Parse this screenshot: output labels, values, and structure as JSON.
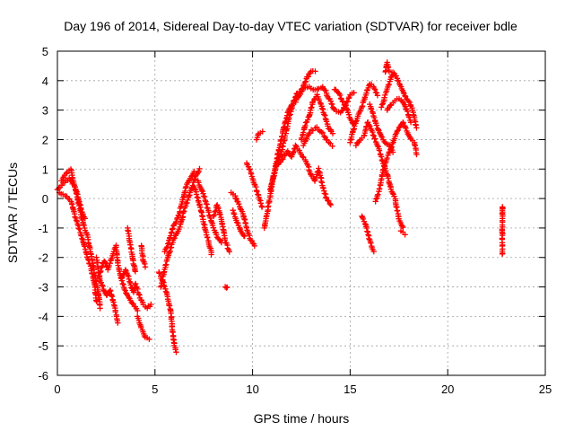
{
  "chart_data": {
    "type": "scatter",
    "title": "Day 196 of 2014, Sidereal Day-to-day VTEC variation (SDTVAR) for receiver bdle",
    "xlabel": "GPS time / hours",
    "ylabel": "SDTVAR / TECUs",
    "xlim": [
      0,
      25
    ],
    "ylim": [
      -6,
      5
    ],
    "xticks": [
      0,
      5,
      10,
      15,
      20,
      25
    ],
    "yticks": [
      -6,
      -5,
      -4,
      -3,
      -2,
      -1,
      0,
      1,
      2,
      3,
      4,
      5
    ],
    "grid": true,
    "marker": "plus",
    "color": "#ff0000",
    "series": [
      {
        "tracks": [
          [
            [
              0.0,
              0.3
            ],
            [
              0.3,
              0.5
            ],
            [
              0.6,
              0.7
            ],
            [
              0.9,
              0.4
            ],
            [
              1.1,
              -0.2
            ],
            [
              1.3,
              -0.8
            ],
            [
              1.5,
              -1.2
            ],
            [
              1.7,
              -1.8
            ],
            [
              1.9,
              -2.5
            ],
            [
              2.1,
              -3.2
            ],
            [
              2.2,
              -3.7
            ]
          ],
          [
            [
              0.1,
              0.2
            ],
            [
              0.4,
              0.1
            ],
            [
              0.7,
              -0.1
            ],
            [
              0.9,
              -0.6
            ],
            [
              1.1,
              -1.0
            ],
            [
              1.3,
              -1.4
            ],
            [
              1.5,
              -1.9
            ],
            [
              1.7,
              -2.3
            ],
            [
              1.9,
              -2.9
            ],
            [
              2.0,
              -3.5
            ]
          ],
          [
            [
              0.2,
              0.6
            ],
            [
              0.5,
              0.9
            ],
            [
              0.7,
              1.0
            ],
            [
              0.8,
              0.6
            ],
            [
              1.0,
              0.2
            ],
            [
              1.2,
              -0.3
            ],
            [
              1.4,
              -0.7
            ]
          ],
          [
            [
              2.2,
              -2.5
            ],
            [
              2.4,
              -2.1
            ],
            [
              2.6,
              -2.4
            ],
            [
              2.8,
              -2.0
            ],
            [
              3.0,
              -1.6
            ],
            [
              3.1,
              -2.2
            ],
            [
              3.3,
              -2.8
            ],
            [
              3.5,
              -3.2
            ],
            [
              3.7,
              -3.4
            ],
            [
              3.9,
              -3.6
            ],
            [
              4.1,
              -3.8
            ]
          ],
          [
            [
              2.0,
              -2.0
            ],
            [
              2.2,
              -2.8
            ],
            [
              2.5,
              -3.3
            ],
            [
              2.7,
              -3.1
            ],
            [
              2.9,
              -3.6
            ],
            [
              3.1,
              -4.2
            ]
          ],
          [
            [
              3.3,
              -2.7
            ],
            [
              3.5,
              -2.4
            ],
            [
              3.7,
              -2.8
            ],
            [
              3.9,
              -3.2
            ],
            [
              4.0,
              -2.9
            ],
            [
              4.2,
              -3.3
            ],
            [
              4.4,
              -3.6
            ],
            [
              4.6,
              -3.7
            ],
            [
              4.8,
              -3.6
            ]
          ],
          [
            [
              3.6,
              -1.0
            ],
            [
              3.7,
              -1.4
            ],
            [
              3.8,
              -1.8
            ],
            [
              3.9,
              -2.2
            ],
            [
              4.0,
              -2.5
            ]
          ],
          [
            [
              4.3,
              -1.6
            ],
            [
              4.4,
              -2.1
            ],
            [
              4.5,
              -2.3
            ]
          ],
          [
            [
              4.1,
              -4.0
            ],
            [
              4.3,
              -4.4
            ],
            [
              4.5,
              -4.7
            ],
            [
              4.7,
              -4.8
            ]
          ],
          [
            [
              5.2,
              -2.5
            ],
            [
              5.4,
              -2.8
            ],
            [
              5.6,
              -3.2
            ],
            [
              5.8,
              -3.8
            ],
            [
              5.9,
              -4.5
            ],
            [
              6.0,
              -5.0
            ],
            [
              6.1,
              -5.2
            ]
          ],
          [
            [
              5.3,
              -3.0
            ],
            [
              5.5,
              -2.4
            ],
            [
              5.7,
              -1.9
            ],
            [
              5.9,
              -1.5
            ],
            [
              6.1,
              -1.2
            ],
            [
              6.3,
              -0.9
            ],
            [
              6.5,
              -0.4
            ],
            [
              6.7,
              0.0
            ],
            [
              6.9,
              0.4
            ],
            [
              7.1,
              0.8
            ],
            [
              7.3,
              1.0
            ]
          ],
          [
            [
              5.5,
              -1.8
            ],
            [
              5.7,
              -1.5
            ],
            [
              5.9,
              -1.0
            ],
            [
              6.2,
              -0.6
            ],
            [
              6.4,
              -0.1
            ],
            [
              6.6,
              0.4
            ],
            [
              6.8,
              0.7
            ],
            [
              7.0,
              0.9
            ]
          ],
          [
            [
              7.2,
              0.6
            ],
            [
              7.4,
              0.3
            ],
            [
              7.6,
              -0.1
            ],
            [
              7.8,
              -0.6
            ],
            [
              8.0,
              -1.0
            ],
            [
              8.2,
              -1.3
            ],
            [
              8.4,
              -1.5
            ]
          ],
          [
            [
              7.0,
              0.4
            ],
            [
              7.2,
              0.0
            ],
            [
              7.4,
              -0.5
            ],
            [
              7.6,
              -1.1
            ],
            [
              7.8,
              -1.6
            ],
            [
              7.9,
              -1.9
            ]
          ],
          [
            [
              8.0,
              -0.6
            ],
            [
              8.2,
              -0.2
            ],
            [
              8.4,
              -0.7
            ],
            [
              8.6,
              -1.4
            ],
            [
              8.8,
              -1.8
            ]
          ],
          [
            [
              8.6,
              -3.0
            ],
            [
              8.7,
              -3.0
            ]
          ],
          [
            [
              8.9,
              0.2
            ],
            [
              9.1,
              0.1
            ],
            [
              9.3,
              -0.2
            ],
            [
              9.5,
              -0.5
            ],
            [
              9.7,
              -1.0
            ],
            [
              9.9,
              -1.4
            ],
            [
              10.1,
              -1.6
            ]
          ],
          [
            [
              9.0,
              -0.4
            ],
            [
              9.2,
              -0.8
            ],
            [
              9.4,
              -1.1
            ],
            [
              9.6,
              -1.3
            ]
          ],
          [
            [
              9.7,
              1.2
            ],
            [
              9.9,
              0.9
            ],
            [
              10.1,
              0.5
            ],
            [
              10.3,
              0.1
            ],
            [
              10.5,
              -0.3
            ]
          ],
          [
            [
              10.2,
              2.0
            ],
            [
              10.3,
              2.2
            ],
            [
              10.5,
              2.3
            ]
          ],
          [
            [
              10.6,
              -1.0
            ],
            [
              10.8,
              -0.3
            ],
            [
              11.0,
              0.5
            ],
            [
              11.2,
              1.2
            ],
            [
              11.4,
              1.8
            ],
            [
              11.6,
              2.4
            ],
            [
              11.8,
              2.9
            ],
            [
              12.0,
              3.2
            ],
            [
              12.2,
              3.3
            ],
            [
              12.4,
              3.5
            ],
            [
              12.6,
              3.8
            ],
            [
              12.8,
              4.1
            ],
            [
              13.0,
              4.3
            ],
            [
              13.2,
              4.3
            ]
          ],
          [
            [
              10.9,
              0.3
            ],
            [
              11.1,
              0.8
            ],
            [
              11.3,
              1.3
            ],
            [
              11.5,
              1.6
            ],
            [
              11.7,
              2.2
            ],
            [
              11.9,
              2.8
            ],
            [
              12.1,
              3.3
            ],
            [
              12.3,
              3.6
            ],
            [
              12.5,
              3.7
            ],
            [
              12.8,
              3.8
            ],
            [
              13.1,
              3.7
            ],
            [
              13.4,
              3.7
            ],
            [
              13.6,
              3.8
            ],
            [
              13.8,
              3.6
            ]
          ],
          [
            [
              11.2,
              1.1
            ],
            [
              11.5,
              1.3
            ],
            [
              11.8,
              1.6
            ],
            [
              12.0,
              1.4
            ],
            [
              12.2,
              1.8
            ],
            [
              12.5,
              1.5
            ],
            [
              12.8,
              1.2
            ],
            [
              13.0,
              0.8
            ],
            [
              13.2,
              0.6
            ],
            [
              13.4,
              1.0
            ],
            [
              13.6,
              0.4
            ],
            [
              13.8,
              0.0
            ],
            [
              14.0,
              -0.2
            ]
          ],
          [
            [
              12.5,
              2.0
            ],
            [
              12.7,
              2.5
            ],
            [
              12.9,
              2.8
            ],
            [
              13.1,
              3.3
            ],
            [
              13.3,
              3.5
            ],
            [
              13.5,
              3.2
            ],
            [
              13.7,
              2.8
            ],
            [
              13.9,
              2.4
            ],
            [
              14.1,
              2.2
            ]
          ],
          [
            [
              12.6,
              1.8
            ],
            [
              12.8,
              2.1
            ],
            [
              13.0,
              2.3
            ],
            [
              13.3,
              2.4
            ],
            [
              13.6,
              2.2
            ],
            [
              13.9,
              1.9
            ],
            [
              14.1,
              1.8
            ]
          ],
          [
            [
              13.8,
              3.5
            ],
            [
              14.0,
              3.3
            ],
            [
              14.2,
              3.0
            ],
            [
              14.5,
              2.9
            ],
            [
              14.8,
              3.2
            ],
            [
              15.0,
              3.5
            ],
            [
              15.2,
              3.6
            ]
          ],
          [
            [
              14.2,
              3.7
            ],
            [
              14.4,
              3.6
            ],
            [
              14.6,
              3.3
            ],
            [
              14.8,
              3.1
            ],
            [
              15.0,
              2.7
            ],
            [
              15.2,
              2.5
            ]
          ],
          [
            [
              15.0,
              1.9
            ],
            [
              15.2,
              2.4
            ],
            [
              15.4,
              2.8
            ],
            [
              15.6,
              3.1
            ],
            [
              15.8,
              3.5
            ],
            [
              16.0,
              3.9
            ],
            [
              16.2,
              3.8
            ],
            [
              16.4,
              3.5
            ]
          ],
          [
            [
              15.3,
              1.8
            ],
            [
              15.5,
              2.0
            ],
            [
              15.7,
              2.1
            ],
            [
              15.9,
              2.6
            ],
            [
              16.1,
              2.3
            ],
            [
              16.3,
              2.0
            ],
            [
              16.5,
              1.6
            ],
            [
              16.7,
              1.2
            ],
            [
              16.9,
              0.8
            ],
            [
              17.1,
              0.3
            ],
            [
              17.3,
              0.0
            ],
            [
              17.5,
              -0.7
            ],
            [
              17.7,
              -1.0
            ]
          ],
          [
            [
              15.6,
              -0.6
            ],
            [
              15.8,
              -0.9
            ],
            [
              16.0,
              -1.4
            ],
            [
              16.2,
              -1.8
            ]
          ],
          [
            [
              16.0,
              3.2
            ],
            [
              16.2,
              2.8
            ],
            [
              16.4,
              2.4
            ],
            [
              16.6,
              2.1
            ],
            [
              16.8,
              1.9
            ],
            [
              17.0,
              1.8
            ],
            [
              17.2,
              1.6
            ]
          ],
          [
            [
              16.3,
              -0.1
            ],
            [
              16.5,
              0.3
            ],
            [
              16.7,
              1.0
            ],
            [
              16.9,
              1.4
            ],
            [
              17.1,
              1.7
            ],
            [
              17.3,
              2.1
            ],
            [
              17.5,
              2.4
            ],
            [
              17.7,
              2.6
            ],
            [
              17.9,
              2.3
            ],
            [
              18.1,
              2.0
            ],
            [
              18.3,
              1.9
            ],
            [
              18.4,
              1.5
            ]
          ],
          [
            [
              16.6,
              3.1
            ],
            [
              16.8,
              3.5
            ],
            [
              17.0,
              3.9
            ],
            [
              17.2,
              4.3
            ],
            [
              17.4,
              4.1
            ],
            [
              17.6,
              3.8
            ],
            [
              17.8,
              3.5
            ],
            [
              18.0,
              3.3
            ],
            [
              18.2,
              3.0
            ],
            [
              18.4,
              2.4
            ]
          ],
          [
            [
              16.8,
              4.3
            ],
            [
              16.9,
              4.6
            ],
            [
              17.0,
              4.3
            ]
          ],
          [
            [
              16.9,
              3.0
            ],
            [
              17.1,
              3.2
            ],
            [
              17.3,
              3.3
            ],
            [
              17.5,
              3.4
            ],
            [
              17.7,
              3.3
            ],
            [
              17.9,
              3.0
            ],
            [
              18.1,
              2.6
            ]
          ],
          [
            [
              17.6,
              -1.1
            ],
            [
              17.8,
              -1.2
            ]
          ],
          [
            [
              22.8,
              -0.4
            ],
            [
              22.8,
              -0.3
            ],
            [
              22.8,
              -1.1
            ],
            [
              22.8,
              -1.2
            ],
            [
              22.8,
              -1.9
            ]
          ]
        ]
      }
    ]
  }
}
